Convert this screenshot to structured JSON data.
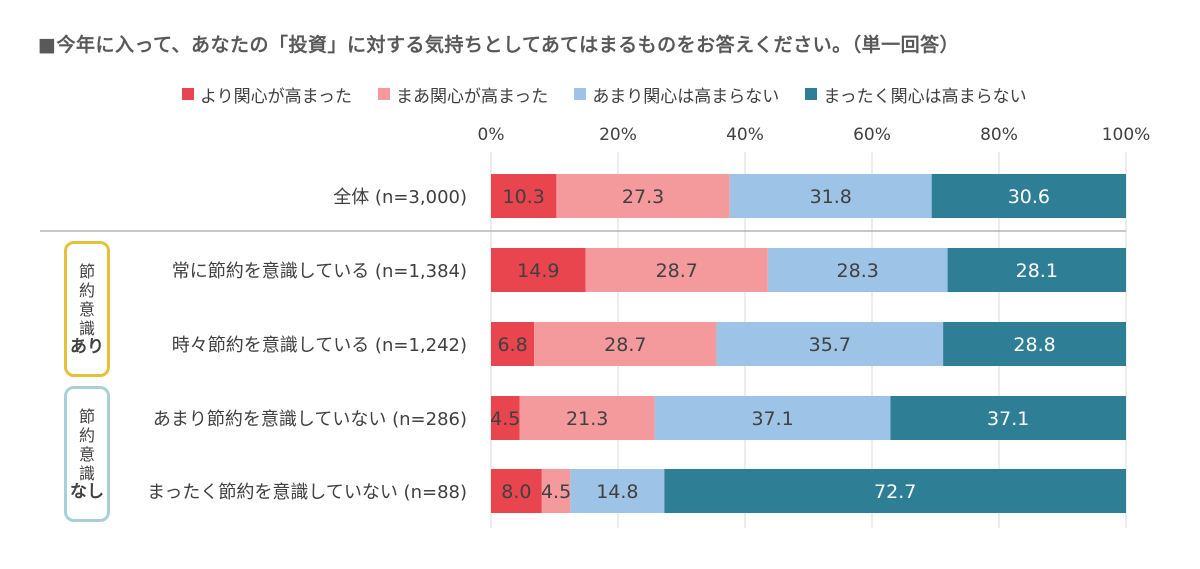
{
  "title": "■今年に入って、あなたの「投資」に対する気持ちとしてあてはまるものをお答えください。（単一回答）",
  "chart_data": {
    "type": "bar",
    "orientation": "horizontal",
    "stacked": "percent",
    "xlim": [
      0,
      100
    ],
    "xticks": [
      "0%",
      "20%",
      "40%",
      "60%",
      "80%",
      "100%"
    ],
    "categories": [
      "全体 (n=3,000)",
      "常に節約を意識している (n=1,384)",
      "時々節約を意識している (n=1,242)",
      "あまり節約を意識していない (n=286)",
      "まったく節約を意識していない (n=88)"
    ],
    "series": [
      {
        "name": "より関心が高まった",
        "color": "#e8454f",
        "values": [
          10.3,
          14.9,
          6.8,
          4.5,
          8.0
        ]
      },
      {
        "name": "まあ関心が高まった",
        "color": "#f59a9c",
        "values": [
          27.3,
          28.7,
          28.7,
          21.3,
          4.5
        ]
      },
      {
        "name": "あまり関心は高まらない",
        "color": "#9dc3e6",
        "values": [
          31.8,
          28.3,
          35.7,
          37.1,
          14.8
        ]
      },
      {
        "name": "まったく関心は高まらない",
        "color": "#2e7f96",
        "values": [
          30.6,
          28.1,
          28.8,
          37.1,
          72.7
        ]
      }
    ],
    "legend_position": "top",
    "grid": true
  },
  "groups": [
    {
      "chars": [
        "節",
        "約",
        "意",
        "識"
      ],
      "emph": "あり",
      "color": "#e8bf3a"
    },
    {
      "chars": [
        "節",
        "約",
        "意",
        "識"
      ],
      "emph": "なし",
      "color": "#a9cfd8"
    }
  ]
}
